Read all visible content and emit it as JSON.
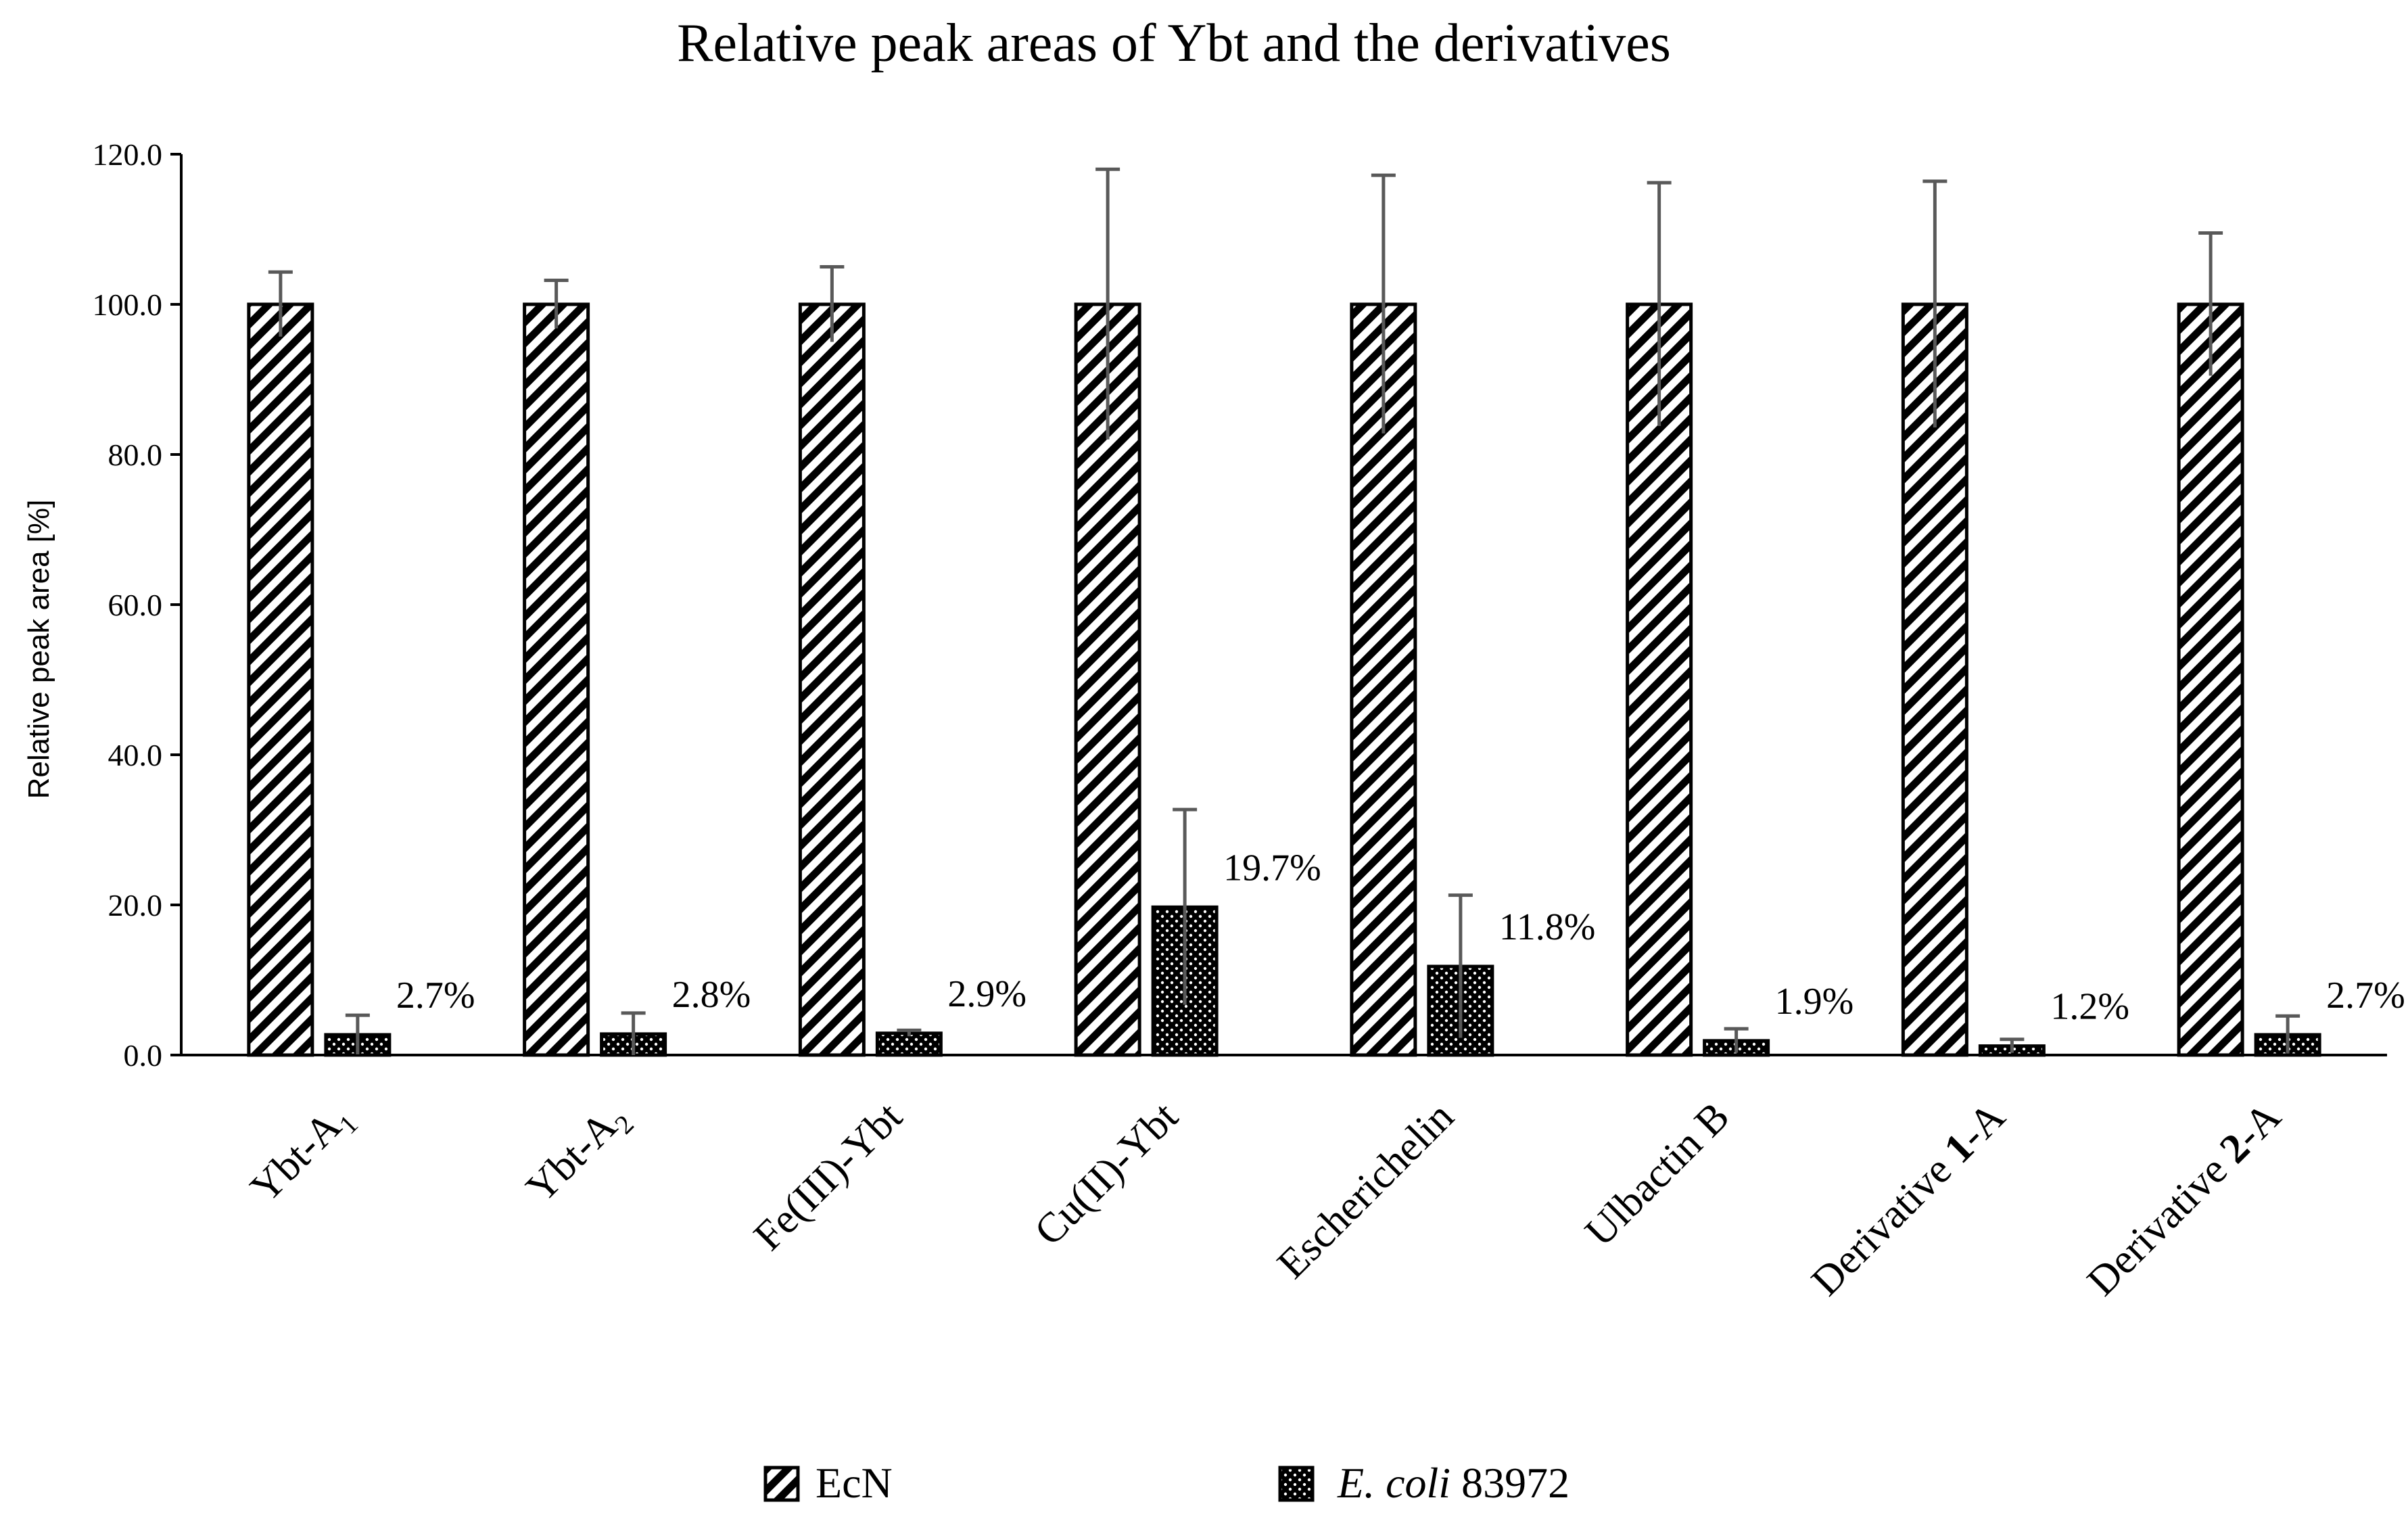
{
  "chart_data": {
    "type": "bar",
    "title": "Relative peak areas of Ybt and the derivatives",
    "ylabel": "Relative peak area [%]",
    "xlabel": "",
    "ylim": [
      0,
      120
    ],
    "yticks": [
      0,
      20,
      40,
      60,
      80,
      100,
      120
    ],
    "ytick_labels": [
      "0.0",
      "20.0",
      "40.0",
      "60.0",
      "80.0",
      "100.0",
      "120.0"
    ],
    "grid": false,
    "legend_position": "bottom",
    "categories": [
      {
        "label": "Ybt-A",
        "sub": "1",
        "bold": ""
      },
      {
        "label": "Ybt-A",
        "sub": "2",
        "bold": ""
      },
      {
        "label": "Fe(III)-Ybt",
        "sub": "",
        "bold": ""
      },
      {
        "label": "Cu(II)-Ybt",
        "sub": "",
        "bold": ""
      },
      {
        "label": "Escherichelin",
        "sub": "",
        "bold": ""
      },
      {
        "label": "Ulbactin B",
        "sub": "",
        "bold": ""
      },
      {
        "label": "Derivative ",
        "bold": "1",
        "suffix": "-A"
      },
      {
        "label": "Derivative ",
        "bold": "2",
        "suffix": "-A"
      }
    ],
    "series": [
      {
        "name": "EcN",
        "pattern": "diagonal-hatch",
        "values": [
          100,
          100,
          100,
          100,
          100,
          100,
          100,
          100
        ],
        "error": [
          4.3,
          3.2,
          5.0,
          18.0,
          17.2,
          16.2,
          16.4,
          9.5
        ],
        "data_labels": [
          "",
          "",
          "",
          "",
          "",
          "",
          "",
          ""
        ]
      },
      {
        "name_italic": "E. coli",
        "name_rest": " 83972",
        "pattern": "dotted-black",
        "values": [
          2.7,
          2.8,
          2.9,
          19.7,
          11.8,
          1.9,
          1.2,
          2.7
        ],
        "error": [
          2.6,
          2.8,
          0.4,
          13.0,
          9.5,
          1.6,
          0.9,
          2.5
        ],
        "data_labels": [
          "2.7%",
          "2.8%",
          "2.9%",
          "19.7%",
          "11.8%",
          "1.9%",
          "1.2%",
          "2.7%"
        ]
      }
    ],
    "colors": {
      "bar_outline": "#000000",
      "error_bar": "#595959",
      "axis": "#000000"
    }
  }
}
